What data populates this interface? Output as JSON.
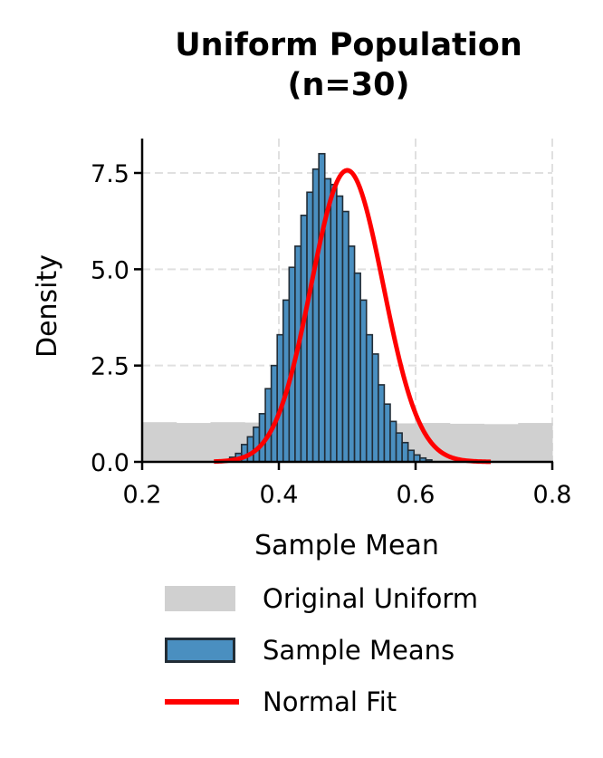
{
  "title": {
    "line1": "Uniform Population",
    "line2": "(n=30)"
  },
  "axes": {
    "xlabel": "Sample Mean",
    "ylabel": "Density",
    "xticks": [
      "0.2",
      "0.4",
      "0.6",
      "0.8"
    ],
    "yticks": [
      "0.0",
      "2.5",
      "5.0",
      "7.5"
    ]
  },
  "legend": {
    "items": [
      {
        "label": "Original Uniform",
        "color": "#d0d0d0"
      },
      {
        "label": "Sample Means",
        "color": "#4a8fc0",
        "edge": "#222d36"
      },
      {
        "label": "Normal Fit",
        "color": "#ff0000"
      }
    ]
  },
  "chart_data": {
    "type": "bar",
    "title": "Uniform Population (n=30)",
    "xlabel": "Sample Mean",
    "ylabel": "Density",
    "xlim": [
      0.2,
      0.8
    ],
    "ylim": [
      0,
      8.35
    ],
    "grid": true,
    "legend_position": "below",
    "series": [
      {
        "name": "Original Uniform",
        "kind": "histogram",
        "color": "#d0d0d0",
        "bin_edges": [
          0.2,
          0.25,
          0.3,
          0.35,
          0.4,
          0.45,
          0.5,
          0.55,
          0.6,
          0.65,
          0.7,
          0.75,
          0.8
        ],
        "values": [
          1.03,
          1.01,
          1.03,
          1.02,
          1.0,
          1.01,
          1.02,
          1.0,
          1.01,
          0.99,
          0.98,
          1.01
        ]
      },
      {
        "name": "Sample Means",
        "kind": "histogram",
        "color": "#4a8fc0",
        "edgecolor": "#222d36",
        "bin_start": 0.328,
        "bin_width": 0.0087,
        "values": [
          0.12,
          0.22,
          0.45,
          0.65,
          0.9,
          1.25,
          1.9,
          2.5,
          3.3,
          4.2,
          5.05,
          5.6,
          6.4,
          7.0,
          7.6,
          8.0,
          7.35,
          7.2,
          6.9,
          6.5,
          5.6,
          4.9,
          4.2,
          3.3,
          2.8,
          2.0,
          1.5,
          1.05,
          0.75,
          0.5,
          0.3,
          0.18,
          0.1,
          0.05
        ]
      },
      {
        "name": "Normal Fit",
        "kind": "line",
        "color": "#ff0000",
        "mean": 0.5,
        "std": 0.0527,
        "x_range": [
          0.305,
          0.71
        ]
      }
    ]
  }
}
